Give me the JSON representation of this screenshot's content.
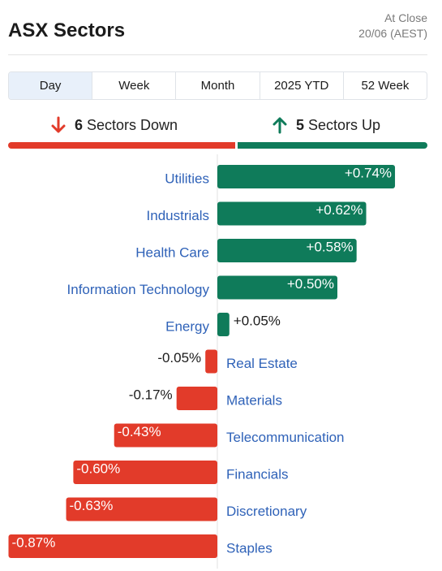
{
  "header": {
    "title": "ASX Sectors",
    "status": "At Close",
    "date": "20/06 (AEST)"
  },
  "tabs": [
    {
      "label": "Day",
      "active": true
    },
    {
      "label": "Week",
      "active": false
    },
    {
      "label": "Month",
      "active": false
    },
    {
      "label": "2025 YTD",
      "active": false
    },
    {
      "label": "52 Week",
      "active": false
    }
  ],
  "summary": {
    "down_count": "6",
    "down_label": "Sectors Down",
    "up_count": "5",
    "up_label": "Sectors Up",
    "down_icon": "arrow-down-icon",
    "up_icon": "arrow-up-icon"
  },
  "colors": {
    "positive": "#0f7b5a",
    "negative": "#e23b2a",
    "label": "#2f62b8"
  },
  "chart_data": {
    "type": "bar",
    "orientation": "horizontal",
    "categories": [
      "Utilities",
      "Industrials",
      "Health Care",
      "Information Technology",
      "Energy",
      "Real Estate",
      "Materials",
      "Telecommunication",
      "Financials",
      "Discretionary",
      "Staples"
    ],
    "values": [
      0.74,
      0.62,
      0.58,
      0.5,
      0.05,
      -0.05,
      -0.17,
      -0.43,
      -0.6,
      -0.63,
      -0.87
    ],
    "labels": [
      "+0.74%",
      "+0.62%",
      "+0.58%",
      "+0.50%",
      "+0.05%",
      "-0.05%",
      "-0.17%",
      "-0.43%",
      "-0.60%",
      "-0.63%",
      "-0.87%"
    ],
    "unit": "%"
  }
}
